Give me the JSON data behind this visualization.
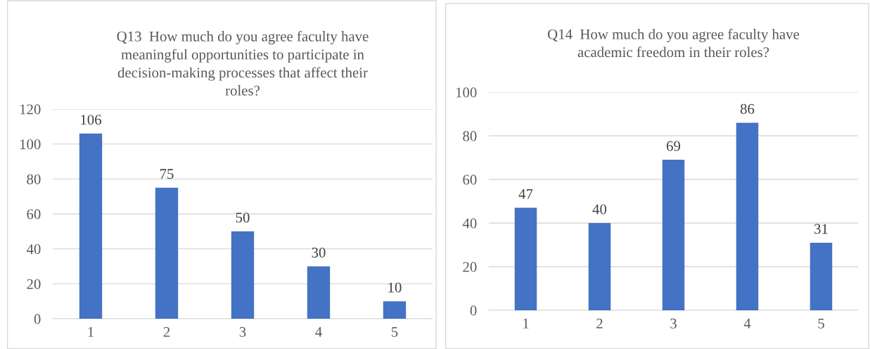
{
  "chart_data": [
    {
      "type": "bar",
      "title": "Q13  How much do you agree faculty have\nmeaningful opportunities to participate in\ndecision-making processes that affect their\nroles?",
      "categories": [
        "1",
        "2",
        "3",
        "4",
        "5"
      ],
      "values": [
        106,
        75,
        50,
        30,
        10
      ],
      "color": "#4472c4",
      "ylim": [
        0,
        120
      ],
      "yticks": [
        0,
        20,
        40,
        60,
        80,
        100,
        120
      ],
      "grid": "y",
      "data_labels": true
    },
    {
      "type": "bar",
      "title": "Q14  How much do you agree faculty have\nacademic freedom in their roles?",
      "categories": [
        "1",
        "2",
        "3",
        "4",
        "5"
      ],
      "values": [
        47,
        40,
        69,
        86,
        31
      ],
      "color": "#4472c4",
      "ylim": [
        0,
        100
      ],
      "yticks": [
        0,
        20,
        40,
        60,
        80,
        100
      ],
      "grid": "y",
      "data_labels": true
    }
  ]
}
